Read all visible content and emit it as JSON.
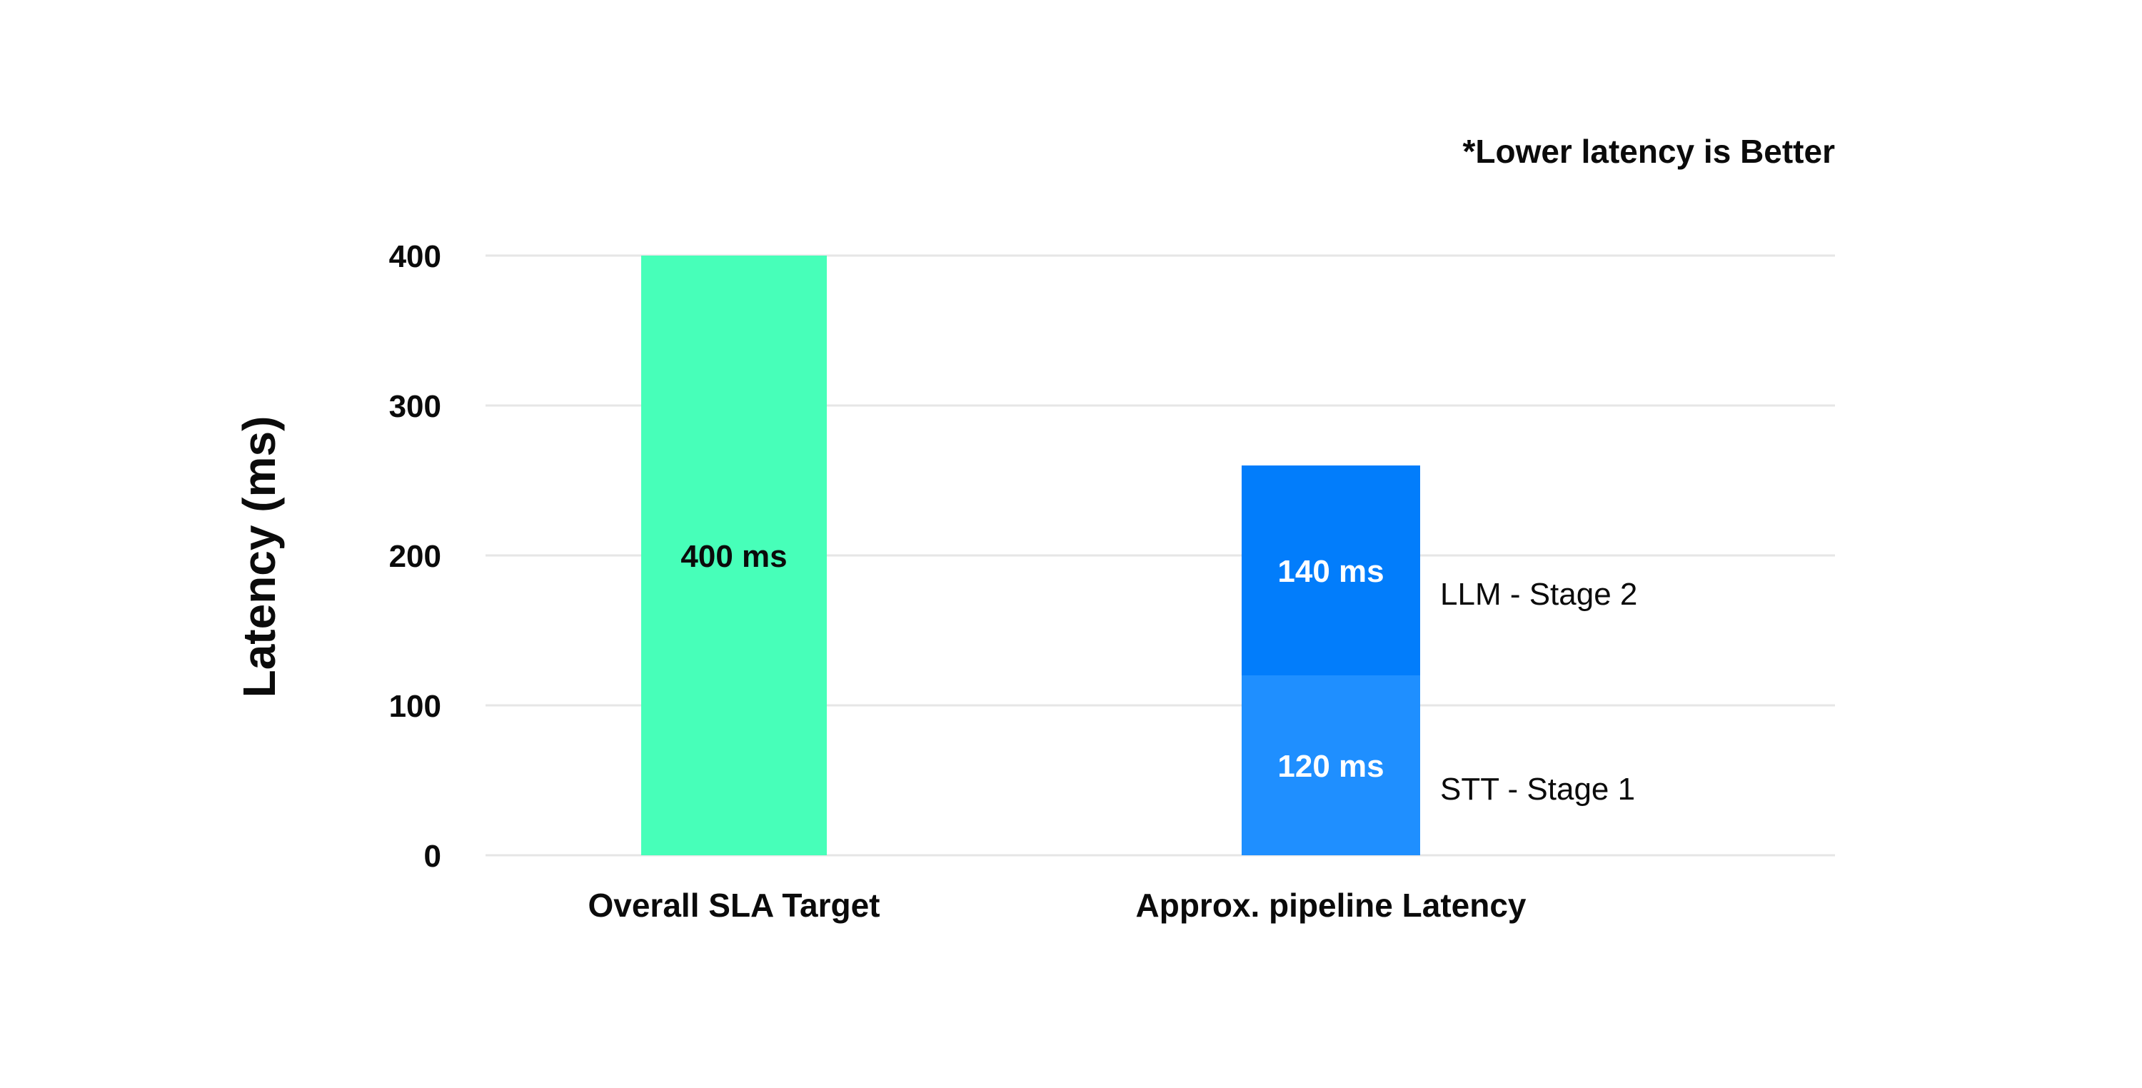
{
  "chart_data": {
    "type": "bar",
    "stacked": true,
    "note": "*Lower latency is Better",
    "ylabel": "Latency (ms)",
    "xlabel": "",
    "ylim": [
      0,
      400
    ],
    "yticks": [
      0,
      100,
      200,
      300,
      400
    ],
    "grid": true,
    "categories": [
      "Overall SLA Target",
      "Approx. pipeline Latency"
    ],
    "series": [
      {
        "values": [
          400,
          0
        ],
        "data_labels": [
          "400 ms",
          ""
        ],
        "color": "#47FFB9",
        "label_color": "#0b0b0b"
      },
      {
        "name": "STT - Stage 1",
        "values": [
          0,
          120
        ],
        "data_labels": [
          "",
          "120 ms"
        ],
        "color": "#1F8FFF",
        "label_color": "#ffffff"
      },
      {
        "name": "LLM - Stage 2",
        "values": [
          0,
          140
        ],
        "data_labels": [
          "",
          "140 ms"
        ],
        "color": "#027DFB",
        "label_color": "#ffffff"
      }
    ],
    "gridline_color": "#E6E6E6",
    "text_color": "#0b0b0b"
  }
}
